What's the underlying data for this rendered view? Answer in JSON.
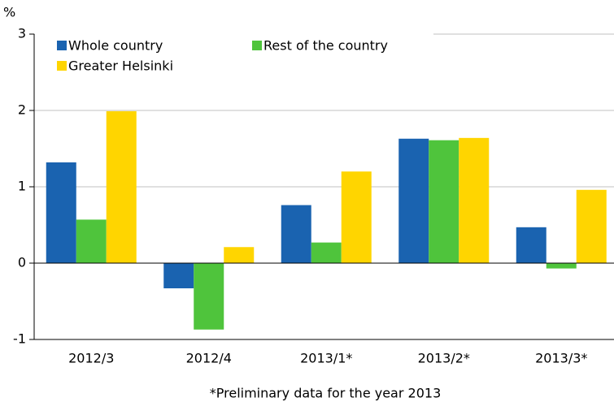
{
  "chart_data": {
    "type": "bar",
    "y_label": "%",
    "footnote": "*Preliminary data for the year 2013",
    "categories": [
      "2012/3",
      "2012/4",
      "2013/1*",
      "2013/2*",
      "2013/3*"
    ],
    "series": [
      {
        "name": "Whole country",
        "color": "#1a63b0",
        "values": [
          1.32,
          -0.33,
          0.76,
          1.63,
          0.47
        ]
      },
      {
        "name": "Rest of the country",
        "color": "#4fc43c",
        "values": [
          0.57,
          -0.87,
          0.27,
          1.61,
          -0.07
        ]
      },
      {
        "name": "Greater Helsinki",
        "color": "#ffd500",
        "values": [
          1.99,
          0.21,
          1.2,
          1.64,
          0.96
        ]
      }
    ],
    "ylim": [
      -1,
      3
    ],
    "yticks": [
      -1,
      0,
      1,
      2,
      3
    ],
    "grid": true,
    "legend": "top-left"
  }
}
